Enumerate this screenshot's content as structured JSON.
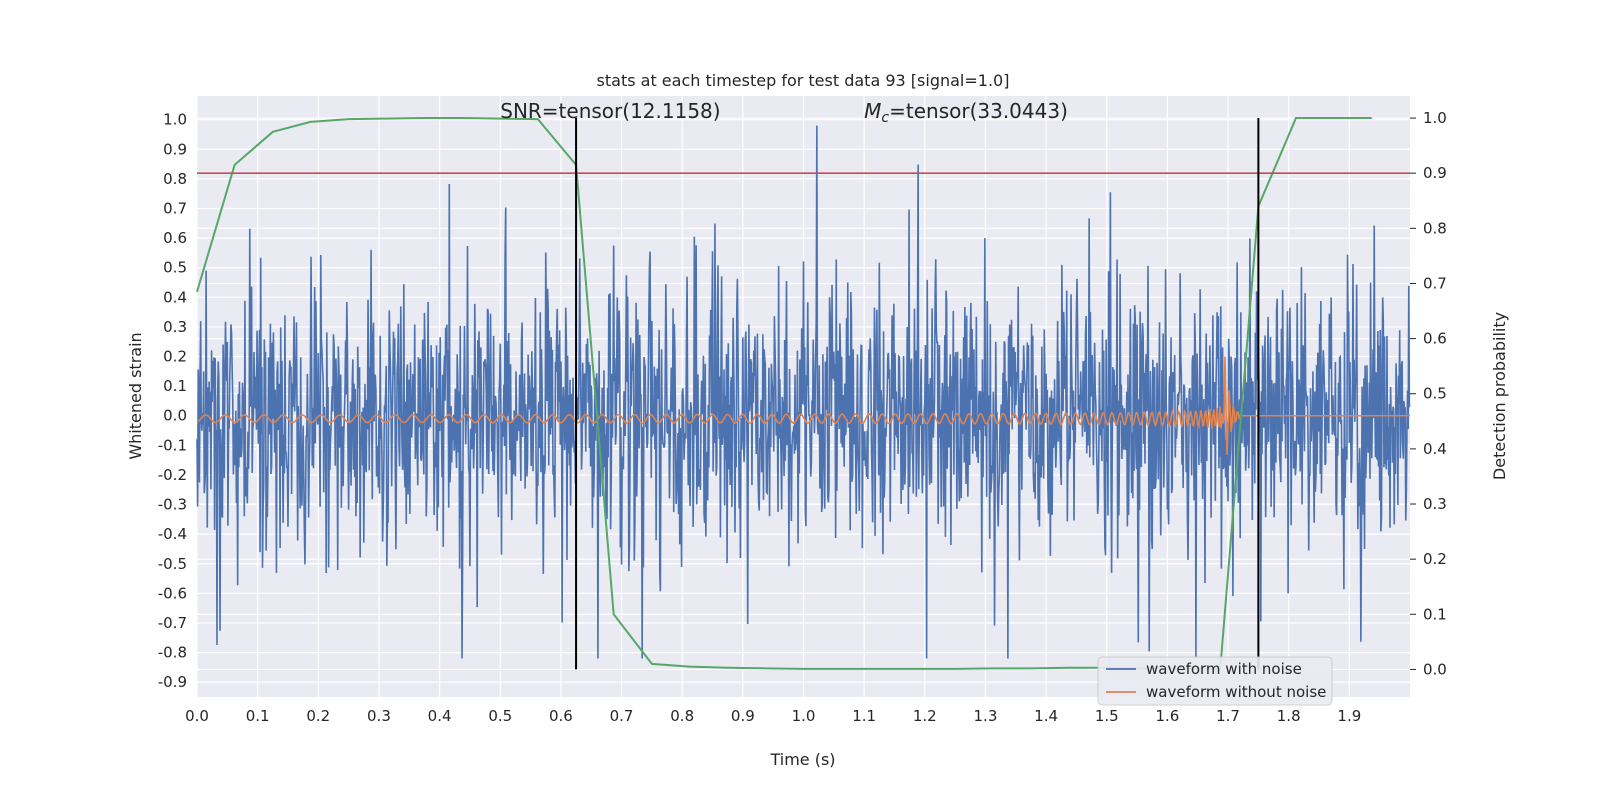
{
  "chart_data": {
    "type": "line",
    "title": "stats at each timestep for test data 93 [signal=1.0]",
    "xlabel": "Time (s)",
    "ylabel": "Whitened strain",
    "y2label": "Detection probability",
    "xlim": [
      0.0,
      2.0
    ],
    "ylim": [
      -0.95,
      1.08
    ],
    "y2lim": [
      -0.05,
      1.04
    ],
    "x_ticks": [
      "0.0",
      "0.1",
      "0.2",
      "0.3",
      "0.4",
      "0.5",
      "0.6",
      "0.7",
      "0.8",
      "0.9",
      "1.0",
      "1.1",
      "1.2",
      "1.3",
      "1.4",
      "1.5",
      "1.6",
      "1.7",
      "1.8",
      "1.9"
    ],
    "y_ticks": [
      "1.0",
      "0.9",
      "0.8",
      "0.7",
      "0.6",
      "0.5",
      "0.4",
      "0.3",
      "0.2",
      "0.1",
      "0.0",
      "-0.1",
      "-0.2",
      "-0.3",
      "-0.4",
      "-0.5",
      "-0.6",
      "-0.7",
      "-0.8",
      "-0.9"
    ],
    "y2_ticks": [
      "1.0",
      "0.9",
      "0.8",
      "0.7",
      "0.6",
      "0.5",
      "0.4",
      "0.3",
      "0.2",
      "0.1",
      "0.0"
    ],
    "grid": true,
    "legend_placement": "bottom-right",
    "colors": {
      "noisy": "#4c72b0",
      "clean": "#dd8452",
      "probability": "#55a868",
      "threshold": "#c44e52",
      "marker": "#000000",
      "background": "#eaeaf2"
    },
    "series": [
      {
        "name": "waveform with noise",
        "axis": "left",
        "note_type": "dense noise trace",
        "y_range_approx": [
          -0.85,
          1.0
        ]
      },
      {
        "name": "waveform without noise",
        "axis": "left",
        "note_type": "chirp"
      },
      {
        "axis": "right",
        "x": [
          0.0,
          0.062,
          0.125,
          0.187,
          0.25,
          0.312,
          0.375,
          0.437,
          0.5,
          0.562,
          0.625,
          0.687,
          0.75,
          0.812,
          0.875,
          0.937,
          1.0,
          1.062,
          1.125,
          1.187,
          1.25,
          1.312,
          1.375,
          1.437,
          1.5,
          1.562,
          1.625,
          1.687,
          1.75,
          1.812,
          1.875,
          1.937
        ],
        "values": [
          0.685,
          0.915,
          0.975,
          0.993,
          0.998,
          0.999,
          1.0,
          1.0,
          0.999,
          0.998,
          0.915,
          0.1,
          0.01,
          0.005,
          0.003,
          0.002,
          0.001,
          0.001,
          0.001,
          0.001,
          0.001,
          0.002,
          0.002,
          0.003,
          0.003,
          0.002,
          0.002,
          0.0,
          0.84,
          1.0,
          1.0,
          1.0
        ]
      }
    ],
    "threshold": {
      "axis": "right",
      "value": 0.9
    },
    "markers_x": [
      0.625,
      1.75
    ],
    "annotations": [
      {
        "text": "SNR=tensor(12.1158)",
        "x": 0.5,
        "y2": 1.0
      },
      {
        "label_symbol": "M",
        "label_sub": "c",
        "text": "=tensor(33.0443)",
        "x": 1.1,
        "y2": 1.0
      }
    ]
  }
}
